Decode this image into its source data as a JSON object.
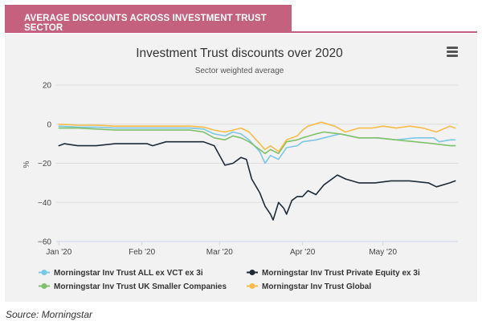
{
  "banner": {
    "title": "AVERAGE DISCOUNTS ACROSS INVESTMENT TRUST SECTOR"
  },
  "source": "Source: Morningstar",
  "colors": {
    "banner": "#c4617f",
    "panel": "#f2f2f2"
  },
  "menu": {
    "icon": "hamburger-menu-icon"
  },
  "chart_data": {
    "type": "line",
    "title": "Investment Trust discounts over 2020",
    "subtitle": "Sector weighted average",
    "ylabel": "%",
    "xlabel": "",
    "ylim": [
      -60,
      20
    ],
    "yticks": [
      "20",
      "0",
      "−20",
      "−40",
      "−60"
    ],
    "ytick_values": [
      20,
      0,
      -20,
      -40,
      -60
    ],
    "xlim": [
      "2019-12-31",
      "2020-05-29"
    ],
    "xticks": [
      "Jan '20",
      "Feb '20",
      "Mar '20",
      "Apr '20",
      "May '20"
    ],
    "xtick_dates": [
      "2020-01-01",
      "2020-02-01",
      "2020-03-01",
      "2020-04-01",
      "2020-05-01"
    ],
    "grid": "horizontal",
    "legend_position": "bottom",
    "series": [
      {
        "name": "Morningstar Inv Trust ALL ex VCT ex 3i",
        "color": "#7cc6e6",
        "points": [
          [
            "2020-01-01",
            -1
          ],
          [
            "2020-01-08",
            -1.5
          ],
          [
            "2020-01-15",
            -1.5
          ],
          [
            "2020-01-22",
            -2
          ],
          [
            "2020-01-29",
            -2
          ],
          [
            "2020-02-05",
            -2
          ],
          [
            "2020-02-12",
            -2
          ],
          [
            "2020-02-19",
            -2
          ],
          [
            "2020-02-24",
            -2.5
          ],
          [
            "2020-02-28",
            -5
          ],
          [
            "2020-03-03",
            -6
          ],
          [
            "2020-03-06",
            -4
          ],
          [
            "2020-03-09",
            -5
          ],
          [
            "2020-03-12",
            -8
          ],
          [
            "2020-03-16",
            -14
          ],
          [
            "2020-03-18",
            -20
          ],
          [
            "2020-03-20",
            -16
          ],
          [
            "2020-03-23",
            -18
          ],
          [
            "2020-03-26",
            -12
          ],
          [
            "2020-03-30",
            -11
          ],
          [
            "2020-04-01",
            -9
          ],
          [
            "2020-04-06",
            -8
          ],
          [
            "2020-04-09",
            -7
          ],
          [
            "2020-04-15",
            -5
          ],
          [
            "2020-04-22",
            -7
          ],
          [
            "2020-04-29",
            -7
          ],
          [
            "2020-05-06",
            -8
          ],
          [
            "2020-05-13",
            -7
          ],
          [
            "2020-05-20",
            -7
          ],
          [
            "2020-05-22",
            -9
          ],
          [
            "2020-05-26",
            -8
          ],
          [
            "2020-05-28",
            -8
          ]
        ]
      },
      {
        "name": "Morningstar Inv Trust Private Equity ex 3i",
        "color": "#1e2a36",
        "points": [
          [
            "2020-01-01",
            -11
          ],
          [
            "2020-01-03",
            -10
          ],
          [
            "2020-01-08",
            -11
          ],
          [
            "2020-01-15",
            -11
          ],
          [
            "2020-01-22",
            -10
          ],
          [
            "2020-01-29",
            -10
          ],
          [
            "2020-02-03",
            -10
          ],
          [
            "2020-02-05",
            -11
          ],
          [
            "2020-02-10",
            -9
          ],
          [
            "2020-02-17",
            -9
          ],
          [
            "2020-02-24",
            -9
          ],
          [
            "2020-02-28",
            -11
          ],
          [
            "2020-03-03",
            -21
          ],
          [
            "2020-03-06",
            -20
          ],
          [
            "2020-03-09",
            -17
          ],
          [
            "2020-03-11",
            -18
          ],
          [
            "2020-03-13",
            -28
          ],
          [
            "2020-03-16",
            -35
          ],
          [
            "2020-03-18",
            -42
          ],
          [
            "2020-03-20",
            -46
          ],
          [
            "2020-03-21",
            -49
          ],
          [
            "2020-03-23",
            -40
          ],
          [
            "2020-03-25",
            -43
          ],
          [
            "2020-03-26",
            -46
          ],
          [
            "2020-03-28",
            -39
          ],
          [
            "2020-03-30",
            -37
          ],
          [
            "2020-04-01",
            -37
          ],
          [
            "2020-04-03",
            -34
          ],
          [
            "2020-04-06",
            -36
          ],
          [
            "2020-04-09",
            -31
          ],
          [
            "2020-04-14",
            -26
          ],
          [
            "2020-04-17",
            -28
          ],
          [
            "2020-04-22",
            -30
          ],
          [
            "2020-04-28",
            -30
          ],
          [
            "2020-05-04",
            -29
          ],
          [
            "2020-05-11",
            -29
          ],
          [
            "2020-05-18",
            -30
          ],
          [
            "2020-05-21",
            -32
          ],
          [
            "2020-05-26",
            -30
          ],
          [
            "2020-05-28",
            -29
          ]
        ]
      },
      {
        "name": "Morningstar Inv Trust UK Smaller Companies",
        "color": "#7fc16a",
        "points": [
          [
            "2020-01-01",
            -2
          ],
          [
            "2020-01-08",
            -2
          ],
          [
            "2020-01-15",
            -2.5
          ],
          [
            "2020-01-22",
            -3
          ],
          [
            "2020-01-29",
            -3
          ],
          [
            "2020-02-05",
            -3
          ],
          [
            "2020-02-12",
            -3
          ],
          [
            "2020-02-19",
            -3
          ],
          [
            "2020-02-24",
            -4
          ],
          [
            "2020-02-28",
            -7
          ],
          [
            "2020-03-03",
            -8
          ],
          [
            "2020-03-06",
            -6
          ],
          [
            "2020-03-09",
            -7
          ],
          [
            "2020-03-12",
            -9
          ],
          [
            "2020-03-16",
            -13
          ],
          [
            "2020-03-18",
            -15
          ],
          [
            "2020-03-20",
            -13
          ],
          [
            "2020-03-23",
            -15
          ],
          [
            "2020-03-26",
            -9
          ],
          [
            "2020-03-30",
            -8
          ],
          [
            "2020-04-01",
            -7
          ],
          [
            "2020-04-06",
            -5
          ],
          [
            "2020-04-09",
            -4
          ],
          [
            "2020-04-15",
            -5
          ],
          [
            "2020-04-22",
            -7
          ],
          [
            "2020-04-29",
            -7
          ],
          [
            "2020-05-06",
            -8
          ],
          [
            "2020-05-13",
            -9
          ],
          [
            "2020-05-20",
            -10
          ],
          [
            "2020-05-26",
            -11
          ],
          [
            "2020-05-28",
            -11
          ]
        ]
      },
      {
        "name": "Morningstar Inv Trust Global",
        "color": "#f6bc4a",
        "points": [
          [
            "2020-01-01",
            0
          ],
          [
            "2020-01-08",
            -0.5
          ],
          [
            "2020-01-15",
            -0.5
          ],
          [
            "2020-01-22",
            -1
          ],
          [
            "2020-01-29",
            -1
          ],
          [
            "2020-02-05",
            -1
          ],
          [
            "2020-02-12",
            -1
          ],
          [
            "2020-02-19",
            -1
          ],
          [
            "2020-02-24",
            -1.5
          ],
          [
            "2020-02-28",
            -3
          ],
          [
            "2020-03-03",
            -4
          ],
          [
            "2020-03-06",
            -3
          ],
          [
            "2020-03-09",
            -2
          ],
          [
            "2020-03-12",
            -4
          ],
          [
            "2020-03-16",
            -10
          ],
          [
            "2020-03-18",
            -13
          ],
          [
            "2020-03-20",
            -11
          ],
          [
            "2020-03-23",
            -14
          ],
          [
            "2020-03-26",
            -8
          ],
          [
            "2020-03-30",
            -6
          ],
          [
            "2020-04-01",
            -3
          ],
          [
            "2020-04-03",
            -1
          ],
          [
            "2020-04-08",
            1
          ],
          [
            "2020-04-13",
            -1
          ],
          [
            "2020-04-17",
            -4
          ],
          [
            "2020-04-22",
            -2
          ],
          [
            "2020-04-27",
            -2
          ],
          [
            "2020-05-01",
            -1
          ],
          [
            "2020-05-06",
            -2
          ],
          [
            "2020-05-11",
            -1
          ],
          [
            "2020-05-16",
            -2
          ],
          [
            "2020-05-21",
            -4
          ],
          [
            "2020-05-26",
            -1
          ],
          [
            "2020-05-28",
            -2
          ]
        ]
      }
    ]
  }
}
